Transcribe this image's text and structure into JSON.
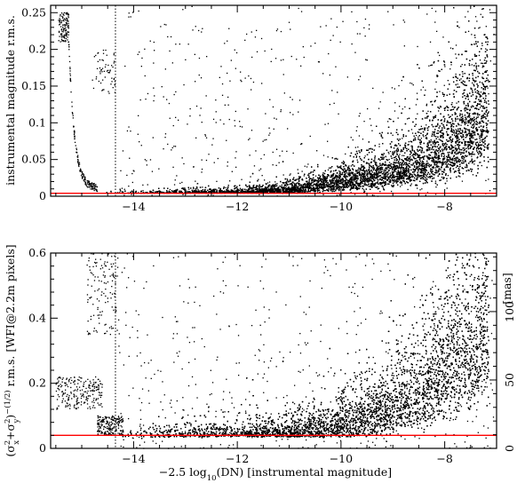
{
  "chart_data": [
    {
      "type": "scatter",
      "xlim": [
        -15.6,
        -7.0
      ],
      "ylim": [
        0,
        0.26
      ],
      "x_ticks": [
        -14,
        -12,
        -10,
        -8
      ],
      "y_ticks": [
        0,
        0.05,
        0.1,
        0.15,
        0.2,
        0.25
      ],
      "y_tick_labels": [
        "0",
        "0.05",
        "0.1",
        "0.15",
        "0.2",
        "0.25"
      ],
      "ylabel": "instrumental magnitude r.m.s.",
      "xlabel": "",
      "reference_line": {
        "y": 0.004,
        "color": "#ff0000"
      },
      "saturation_line": {
        "x": -14.35,
        "style": "dotted"
      },
      "floor": 0.004,
      "trend": [
        {
          "x": -15.0,
          "y": 0.006
        },
        {
          "x": -14.0,
          "y": 0.004
        },
        {
          "x": -12.0,
          "y": 0.006
        },
        {
          "x": -11.0,
          "y": 0.01
        },
        {
          "x": -10.0,
          "y": 0.02
        },
        {
          "x": -9.0,
          "y": 0.035
        },
        {
          "x": -8.0,
          "y": 0.065
        },
        {
          "x": -7.5,
          "y": 0.095
        },
        {
          "x": -7.2,
          "y": 0.12
        }
      ],
      "grid": false,
      "legend": "none"
    },
    {
      "type": "scatter",
      "xlim": [
        -15.6,
        -7.0
      ],
      "ylim": [
        0,
        0.6
      ],
      "x_ticks": [
        -14,
        -12,
        -10,
        -8
      ],
      "x_tick_labels": [
        "−14",
        "−12",
        "−10",
        "−8"
      ],
      "y_ticks": [
        0,
        0.2,
        0.4,
        0.6
      ],
      "y_tick_labels": [
        "0",
        "0.2",
        "0.4",
        "0.6"
      ],
      "y2_ticks": [
        0,
        50,
        100
      ],
      "y2_tick_labels": [
        "0",
        "50",
        "100"
      ],
      "y2_scale_mas_per_pixel": 238,
      "ylabel": "(σ²x+σ²y)^(−1/2) r.m.s. [WFI@2.2m pixels]",
      "y2label": "[mas]",
      "xlabel": "−2.5 log10(DN) [instrumental magnitude]",
      "reference_line": {
        "y": 0.04,
        "color": "#ff0000"
      },
      "saturation_line": {
        "x": -14.35,
        "style": "dotted"
      },
      "floor": 0.035,
      "trend": [
        {
          "x": -14.0,
          "y": 0.04
        },
        {
          "x": -12.0,
          "y": 0.045
        },
        {
          "x": -10.5,
          "y": 0.06
        },
        {
          "x": -9.5,
          "y": 0.1
        },
        {
          "x": -8.5,
          "y": 0.18
        },
        {
          "x": -8.0,
          "y": 0.25
        },
        {
          "x": -7.5,
          "y": 0.33
        },
        {
          "x": -7.2,
          "y": 0.4
        }
      ],
      "grid": false,
      "legend": "none"
    }
  ],
  "labels": {
    "top_ylabel": "instrumental magnitude r.m.s.",
    "bottom_ylabel_prefix": "(σ",
    "bottom_ylabel_rest": "r.m.s. [WFI@2.2m pixels]",
    "bottom_y2label": "[mas]",
    "xlabel_prefix": "−2.5 log",
    "xlabel_sub": "10",
    "xlabel_rest": "(DN) [instrumental magnitude]"
  }
}
